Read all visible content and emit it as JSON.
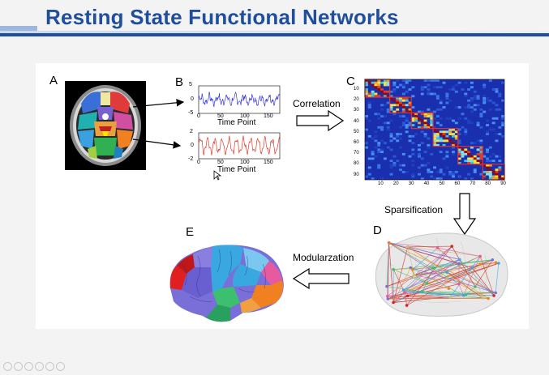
{
  "slide": {
    "title": "Resting State Functional Networks"
  },
  "figure": {
    "panel_labels": {
      "a": "A",
      "b": "B",
      "c": "C",
      "d": "D",
      "e": "E"
    },
    "arrows": {
      "correlation": "Correlation",
      "sparsification": "Sparsification",
      "modularization": "Modularzation"
    },
    "timeseries": [
      {
        "y_ticks": [
          "5",
          "0",
          "-5"
        ],
        "x_ticks": [
          "0",
          "50",
          "100",
          "150"
        ],
        "xlabel": "Time Point",
        "color": "#3a3adc"
      },
      {
        "y_ticks": [
          "2",
          "0",
          "-2"
        ],
        "x_ticks": [
          "0",
          "50",
          "100",
          "150"
        ],
        "xlabel": "Time Point",
        "color": "#e03a2a"
      }
    ],
    "matrix": {
      "y_ticks": [
        "10",
        "20",
        "30",
        "40",
        "50",
        "60",
        "70",
        "80",
        "90"
      ],
      "x_ticks": [
        "10",
        "20",
        "30",
        "40",
        "50",
        "60",
        "70",
        "80",
        "90"
      ],
      "highlight_color": "#e03030",
      "background_color": "#1a2fae"
    },
    "module_colors": [
      "#7a6fd8",
      "#3aa8e0",
      "#e85aa0",
      "#3cc070",
      "#f08020",
      "#e02020",
      "#c8c070"
    ]
  }
}
